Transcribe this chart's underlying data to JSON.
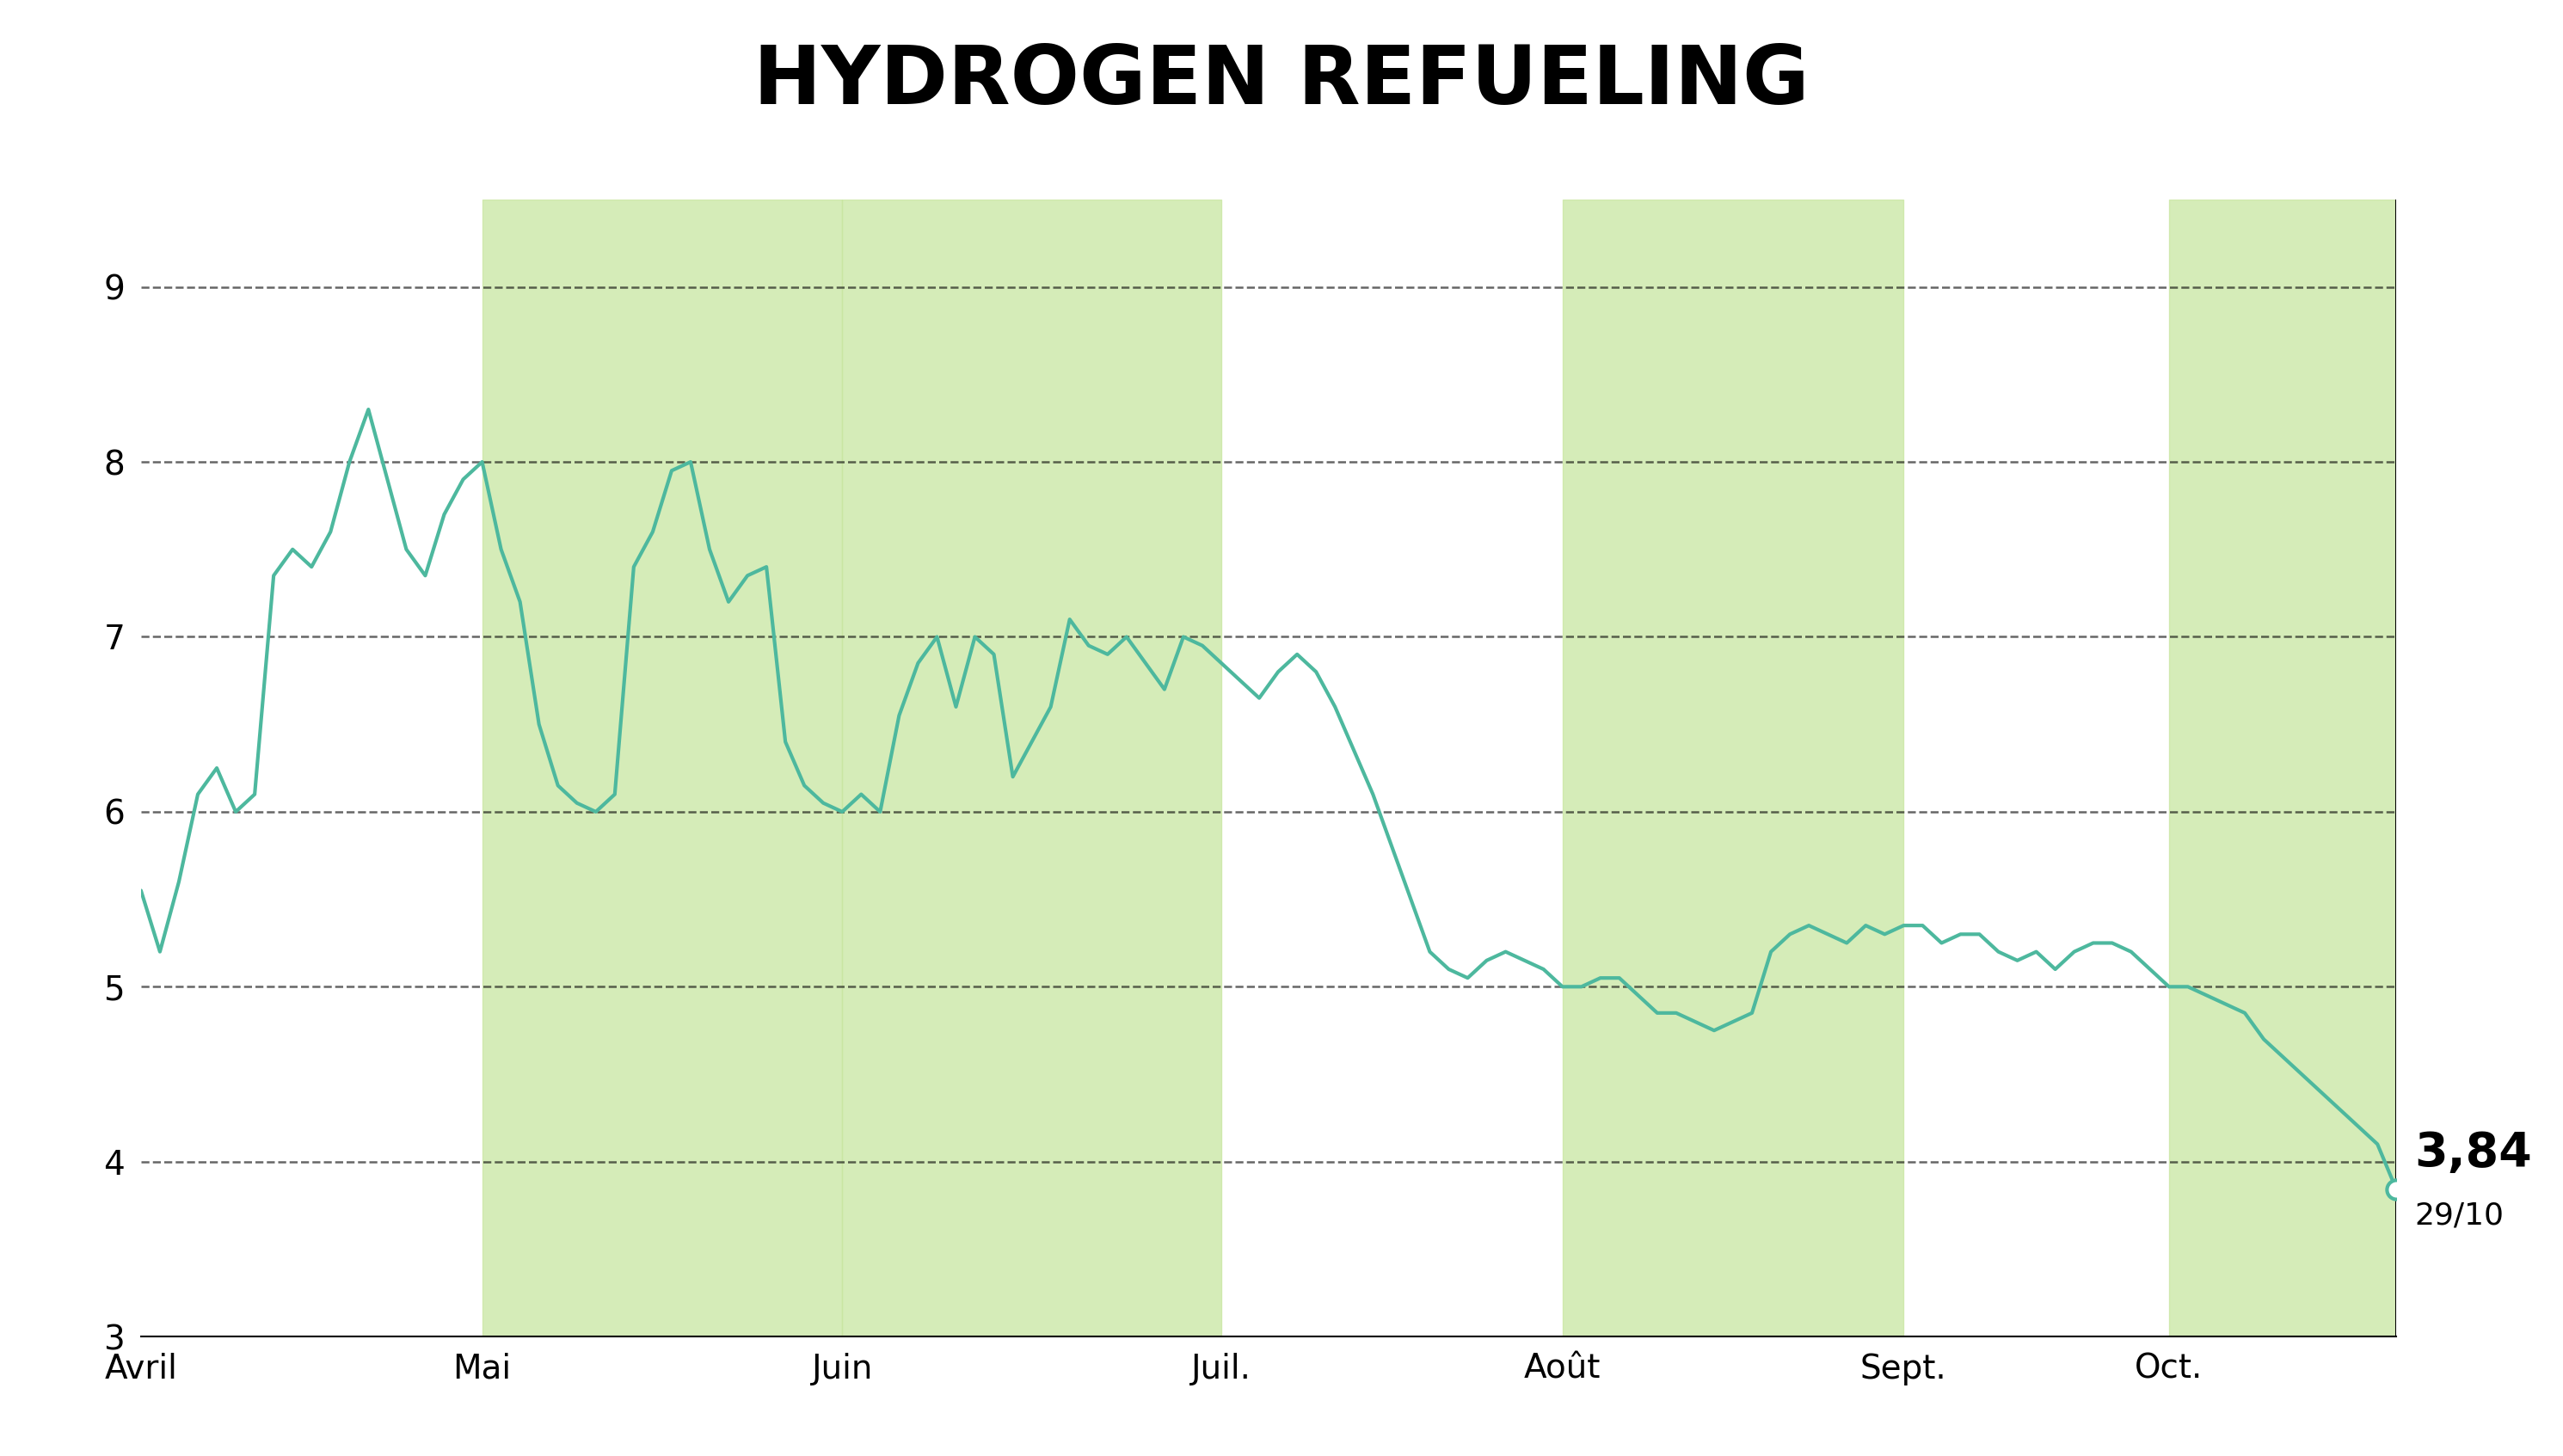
{
  "title": "HYDROGEN REFUELING",
  "title_bg_color": "#c8e6a0",
  "chart_bg_color": "#ffffff",
  "line_color": "#4db89e",
  "line_width": 3.0,
  "grid_color": "#000000",
  "grid_linestyle": "--",
  "grid_alpha": 0.6,
  "grid_linewidth": 1.8,
  "ylim": [
    3.0,
    9.5
  ],
  "yticks": [
    3,
    4,
    5,
    6,
    7,
    8,
    9
  ],
  "xlabel_months": [
    "Avril",
    "Mai",
    "Juin",
    "Juil.",
    "Août",
    "Sept.",
    "Oct."
  ],
  "band_color": "#c8e6a0",
  "band_alpha": 0.75,
  "last_price": "3,84",
  "last_date": "29/10",
  "title_fontsize": 68,
  "tick_fontsize": 28,
  "annotation_price_fontsize": 40,
  "annotation_date_fontsize": 26,
  "prices": [
    5.55,
    5.2,
    5.6,
    6.1,
    6.25,
    6.0,
    6.1,
    7.35,
    7.5,
    7.4,
    7.6,
    8.0,
    8.3,
    7.9,
    7.5,
    7.35,
    7.7,
    7.9,
    8.0,
    7.5,
    7.2,
    6.5,
    6.15,
    6.05,
    6.0,
    6.1,
    7.4,
    7.6,
    7.95,
    8.0,
    7.5,
    7.2,
    7.35,
    7.4,
    6.4,
    6.15,
    6.05,
    6.0,
    6.1,
    6.0,
    6.55,
    6.85,
    7.0,
    6.6,
    7.0,
    6.9,
    6.2,
    6.4,
    6.6,
    7.1,
    6.95,
    6.9,
    7.0,
    6.85,
    6.7,
    7.0,
    6.95,
    6.85,
    6.75,
    6.65,
    6.8,
    6.9,
    6.8,
    6.6,
    6.35,
    6.1,
    5.8,
    5.5,
    5.2,
    5.1,
    5.05,
    5.15,
    5.2,
    5.15,
    5.1,
    5.0,
    5.0,
    5.05,
    5.05,
    4.95,
    4.85,
    4.85,
    4.8,
    4.75,
    4.8,
    4.85,
    5.2,
    5.3,
    5.35,
    5.3,
    5.25,
    5.35,
    5.3,
    5.35,
    5.35,
    5.25,
    5.3,
    5.3,
    5.2,
    5.15,
    5.2,
    5.1,
    5.2,
    5.25,
    5.25,
    5.2,
    5.1,
    5.0,
    5.0,
    4.95,
    4.9,
    4.85,
    4.7,
    4.6,
    4.5,
    4.4,
    4.3,
    4.2,
    4.1,
    3.84
  ],
  "month_starts": [
    0,
    18,
    37,
    57,
    75,
    93,
    107
  ],
  "month_end": 119,
  "shaded_months_idx": [
    1,
    2,
    4,
    6
  ],
  "total_points": 120
}
